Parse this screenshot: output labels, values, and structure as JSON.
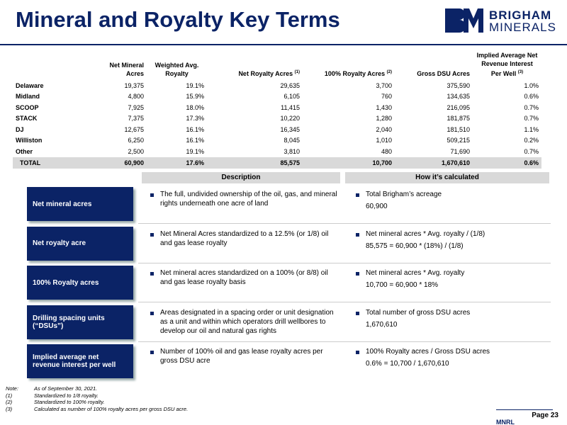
{
  "header": {
    "title": "Mineral and Royalty Key Terms",
    "logo": {
      "line1": "BRIGHAM",
      "line2": "MINERALS"
    }
  },
  "table": {
    "columns": [
      {
        "label": "Net Mineral Acres"
      },
      {
        "label": "Weighted Avg. Royalty"
      },
      {
        "label": "Net Royalty Acres",
        "note": "(1)"
      },
      {
        "label": "100% Royalty Acres",
        "note": "(2)"
      },
      {
        "label": "Gross DSU Acres"
      },
      {
        "label": "Implied Average Net Revenue Interest Per Well",
        "note": "(3)"
      }
    ],
    "rows": [
      [
        "Delaware",
        "19,375",
        "19.1%",
        "29,635",
        "3,700",
        "375,590",
        "1.0%"
      ],
      [
        "Midland",
        "4,800",
        "15.9%",
        "6,105",
        "760",
        "134,635",
        "0.6%"
      ],
      [
        "SCOOP",
        "7,925",
        "18.0%",
        "11,415",
        "1,430",
        "216,095",
        "0.7%"
      ],
      [
        "STACK",
        "7,375",
        "17.3%",
        "10,220",
        "1,280",
        "181,875",
        "0.7%"
      ],
      [
        "DJ",
        "12,675",
        "16.1%",
        "16,345",
        "2,040",
        "181,510",
        "1.1%"
      ],
      [
        "Williston",
        "6,250",
        "16.1%",
        "8,045",
        "1,010",
        "509,215",
        "0.2%"
      ],
      [
        "Other",
        "2,500",
        "19.1%",
        "3,810",
        "480",
        "71,690",
        "0.7%"
      ]
    ],
    "total": [
      "TOTAL",
      "60,900",
      "17.6%",
      "85,575",
      "10,700",
      "1,670,610",
      "0.6%"
    ]
  },
  "terms": {
    "headers": [
      "Description",
      "How it’s calculated"
    ],
    "items": [
      {
        "term": "Net mineral acres",
        "description": "The full, undivided ownership of the oil, gas, and mineral rights underneath one acre of land",
        "calculation": [
          "Total Brigham’s acreage",
          "60,900"
        ]
      },
      {
        "term": "Net royalty acre",
        "description": "Net Mineral Acres standardized to a 12.5% (or 1/8) oil and gas lease royalty",
        "calculation": [
          "Net mineral acres * Avg. royalty / (1/8)",
          "85,575 = 60,900 * (18%) / (1/8)"
        ]
      },
      {
        "term": "100% Royalty acres",
        "description": "Net mineral acres standardized on a 100% (or 8/8) oil and gas lease royalty basis",
        "calculation": [
          "Net mineral acres * Avg. royalty",
          "10,700 = 60,900 * 18%"
        ]
      },
      {
        "term": "Drilling spacing units (“DSUs”)",
        "description": "Areas designated in a spacing order or unit designation as a unit and within which operators drill wellbores to develop our oil and natural gas rights",
        "calculation": [
          "Total number of gross DSU acres",
          "1,670,610"
        ]
      },
      {
        "term": "Implied average net revenue interest per well",
        "description": "Number of 100% oil and gas lease royalty acres per gross DSU acre",
        "calculation": [
          "100% Royalty acres / Gross DSU acres",
          "0.6% = 10,700 / 1,670,610"
        ]
      }
    ]
  },
  "notes": [
    {
      "label": "Note:",
      "text": "As of September 30, 2021."
    },
    {
      "label": "(1)",
      "text": "Standardized to 1/8 royalty."
    },
    {
      "label": "(2)",
      "text": "Standardized to 100% royalty."
    },
    {
      "label": "(3)",
      "text": "Calculated as number of 100% royalty acres per gross DSU acre."
    }
  ],
  "footer": {
    "page": "Page 23",
    "ticker": "MNRL"
  }
}
